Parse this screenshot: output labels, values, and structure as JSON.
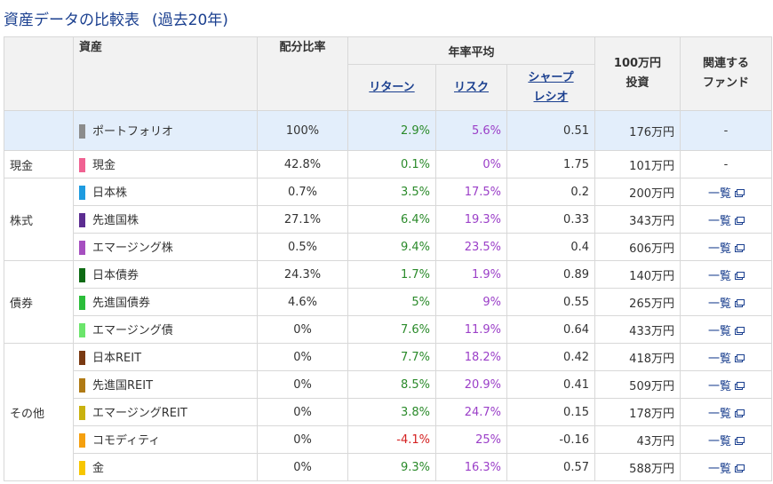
{
  "title": {
    "main": "資産データの比較表",
    "sub": "(過去20年)"
  },
  "header": {
    "asset": "資産",
    "allocation": "配分比率",
    "annual_avg": "年率平均",
    "return": "リターン",
    "risk": "リスク",
    "sharpe_line1": "シャープ",
    "sharpe_line2": "レシオ",
    "invest_line1": "100万円",
    "invest_line2": "投資",
    "fund_line1": "関連する",
    "fund_line2": "ファンド"
  },
  "link_label": "一覧",
  "categories": [
    {
      "label": "",
      "rows": [
        {
          "name": "ポートフォリオ",
          "color": "#8c8c8c",
          "allocation": "100%",
          "return": "2.9%",
          "risk": "5.6%",
          "sharpe": "0.51",
          "invest": "176万円",
          "fund": "-"
        }
      ]
    },
    {
      "label": "現金",
      "rows": [
        {
          "name": "現金",
          "color": "#f06292",
          "allocation": "42.8%",
          "return": "0.1%",
          "risk": "0%",
          "sharpe": "1.75",
          "invest": "101万円",
          "fund": "-"
        }
      ]
    },
    {
      "label": "株式",
      "rows": [
        {
          "name": "日本株",
          "color": "#1e9be0",
          "allocation": "0.7%",
          "return": "3.5%",
          "risk": "17.5%",
          "sharpe": "0.2",
          "invest": "200万円",
          "fund": "link"
        },
        {
          "name": "先進国株",
          "color": "#5c2d91",
          "allocation": "27.1%",
          "return": "6.4%",
          "risk": "19.3%",
          "sharpe": "0.33",
          "invest": "343万円",
          "fund": "link"
        },
        {
          "name": "エマージング株",
          "color": "#a64fc0",
          "allocation": "0.5%",
          "return": "9.4%",
          "risk": "23.5%",
          "sharpe": "0.4",
          "invest": "606万円",
          "fund": "link"
        }
      ]
    },
    {
      "label": "債券",
      "rows": [
        {
          "name": "日本債券",
          "color": "#0e6b14",
          "allocation": "24.3%",
          "return": "1.7%",
          "risk": "1.9%",
          "sharpe": "0.89",
          "invest": "140万円",
          "fund": "link"
        },
        {
          "name": "先進国債券",
          "color": "#2bbd3a",
          "allocation": "4.6%",
          "return": "5%",
          "risk": "9%",
          "sharpe": "0.55",
          "invest": "265万円",
          "fund": "link"
        },
        {
          "name": "エマージング債",
          "color": "#6be56b",
          "allocation": "0%",
          "return": "7.6%",
          "risk": "11.9%",
          "sharpe": "0.64",
          "invest": "433万円",
          "fund": "link"
        }
      ]
    },
    {
      "label": "その他",
      "rows": [
        {
          "name": "日本REIT",
          "color": "#7a3a12",
          "allocation": "0%",
          "return": "7.7%",
          "risk": "18.2%",
          "sharpe": "0.42",
          "invest": "418万円",
          "fund": "link"
        },
        {
          "name": "先進国REIT",
          "color": "#b07a14",
          "allocation": "0%",
          "return": "8.5%",
          "risk": "20.9%",
          "sharpe": "0.41",
          "invest": "509万円",
          "fund": "link"
        },
        {
          "name": "エマージングREIT",
          "color": "#c9b20e",
          "allocation": "0%",
          "return": "3.8%",
          "risk": "24.7%",
          "sharpe": "0.15",
          "invest": "178万円",
          "fund": "link"
        },
        {
          "name": "コモディティ",
          "color": "#f5a00f",
          "allocation": "0%",
          "return": "-4.1%",
          "risk": "25%",
          "sharpe": "-0.16",
          "invest": "43万円",
          "fund": "link"
        },
        {
          "name": "金",
          "color": "#f7c600",
          "allocation": "0%",
          "return": "9.3%",
          "risk": "16.3%",
          "sharpe": "0.57",
          "invest": "588万円",
          "fund": "link"
        }
      ]
    }
  ]
}
